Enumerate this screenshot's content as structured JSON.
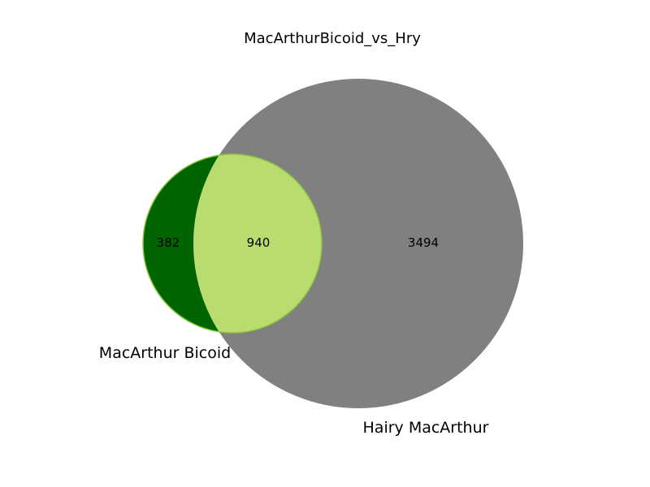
{
  "title": "MacArthurBicoid_vs_Hry",
  "sets": [
    {
      "name": "MacArthur Bicoid",
      "color": "#006400"
    },
    {
      "name": "Hairy MacArthur",
      "color": "#808080"
    }
  ],
  "intersection_color": "#b8dc70",
  "intersection_edge_color": "#8cc63e",
  "counts": {
    "only_a": "382",
    "both": "940",
    "only_b": "3494"
  },
  "chart_data": {
    "type": "venn",
    "title": "MacArthurBicoid_vs_Hry",
    "set_names": [
      "MacArthur Bicoid",
      "Hairy MacArthur"
    ],
    "values": {
      "MacArthur Bicoid only": 382,
      "intersection": 940,
      "Hairy MacArthur only": 3494
    }
  }
}
